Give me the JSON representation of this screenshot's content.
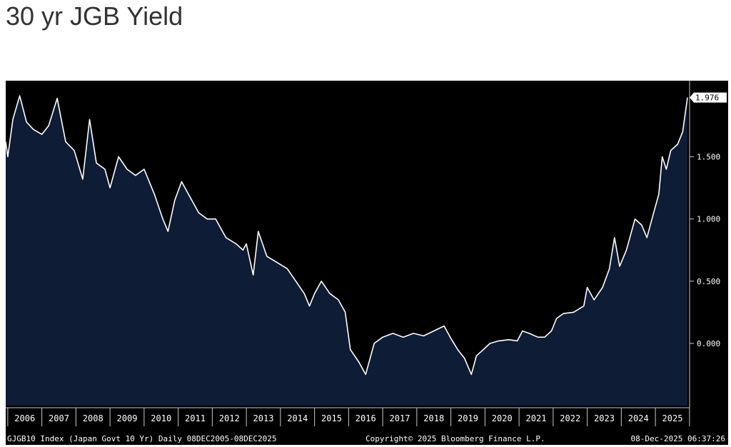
{
  "title": "30 yr JGB Yield",
  "chart_data": {
    "type": "area",
    "series_color": "#ffffff",
    "area_color": "#0f1c36",
    "background": "#000000",
    "ylim": [
      -0.5,
      2.1
    ],
    "xlim": [
      2005.94,
      2025.94
    ],
    "y_ticks": [
      0,
      0.5,
      1.0,
      1.5
    ],
    "y_tick_labels": [
      "0.000",
      "0.500",
      "1.000",
      "1.500"
    ],
    "y_axis_side": "right",
    "last_value": 1.976,
    "last_value_label": "1.976",
    "x_tick_labels": [
      "2006",
      "2007",
      "2008",
      "2009",
      "2010",
      "2011",
      "2012",
      "2013",
      "2014",
      "2015",
      "2016",
      "2017",
      "2018",
      "2019",
      "2020",
      "2021",
      "2022",
      "2023",
      "2024",
      "2025"
    ],
    "points": [
      [
        2005.94,
        1.62
      ],
      [
        2006.0,
        1.5
      ],
      [
        2006.15,
        1.8
      ],
      [
        2006.35,
        1.99
      ],
      [
        2006.55,
        1.78
      ],
      [
        2006.75,
        1.72
      ],
      [
        2007.0,
        1.68
      ],
      [
        2007.2,
        1.75
      ],
      [
        2007.45,
        1.97
      ],
      [
        2007.7,
        1.62
      ],
      [
        2007.95,
        1.55
      ],
      [
        2008.2,
        1.32
      ],
      [
        2008.4,
        1.8
      ],
      [
        2008.6,
        1.45
      ],
      [
        2008.85,
        1.4
      ],
      [
        2009.0,
        1.25
      ],
      [
        2009.25,
        1.5
      ],
      [
        2009.5,
        1.4
      ],
      [
        2009.75,
        1.35
      ],
      [
        2010.0,
        1.4
      ],
      [
        2010.3,
        1.2
      ],
      [
        2010.55,
        1.0
      ],
      [
        2010.7,
        0.9
      ],
      [
        2010.9,
        1.15
      ],
      [
        2011.1,
        1.3
      ],
      [
        2011.3,
        1.2
      ],
      [
        2011.6,
        1.05
      ],
      [
        2011.85,
        1.0
      ],
      [
        2012.1,
        1.0
      ],
      [
        2012.4,
        0.85
      ],
      [
        2012.7,
        0.8
      ],
      [
        2012.9,
        0.75
      ],
      [
        2013.0,
        0.8
      ],
      [
        2013.2,
        0.55
      ],
      [
        2013.35,
        0.9
      ],
      [
        2013.6,
        0.7
      ],
      [
        2013.9,
        0.65
      ],
      [
        2014.2,
        0.6
      ],
      [
        2014.45,
        0.5
      ],
      [
        2014.7,
        0.4
      ],
      [
        2014.85,
        0.3
      ],
      [
        2015.0,
        0.4
      ],
      [
        2015.2,
        0.5
      ],
      [
        2015.45,
        0.4
      ],
      [
        2015.7,
        0.35
      ],
      [
        2015.9,
        0.25
      ],
      [
        2016.05,
        -0.05
      ],
      [
        2016.3,
        -0.15
      ],
      [
        2016.5,
        -0.25
      ],
      [
        2016.75,
        0.0
      ],
      [
        2017.0,
        0.05
      ],
      [
        2017.3,
        0.08
      ],
      [
        2017.6,
        0.05
      ],
      [
        2017.9,
        0.08
      ],
      [
        2018.2,
        0.06
      ],
      [
        2018.5,
        0.1
      ],
      [
        2018.8,
        0.14
      ],
      [
        2019.0,
        0.04
      ],
      [
        2019.2,
        -0.05
      ],
      [
        2019.4,
        -0.12
      ],
      [
        2019.6,
        -0.25
      ],
      [
        2019.75,
        -0.1
      ],
      [
        2019.95,
        -0.05
      ],
      [
        2020.15,
        0.0
      ],
      [
        2020.4,
        0.02
      ],
      [
        2020.7,
        0.03
      ],
      [
        2020.95,
        0.02
      ],
      [
        2021.1,
        0.1
      ],
      [
        2021.3,
        0.08
      ],
      [
        2021.55,
        0.05
      ],
      [
        2021.75,
        0.05
      ],
      [
        2021.95,
        0.1
      ],
      [
        2022.1,
        0.2
      ],
      [
        2022.3,
        0.24
      ],
      [
        2022.6,
        0.25
      ],
      [
        2022.9,
        0.3
      ],
      [
        2023.0,
        0.45
      ],
      [
        2023.2,
        0.35
      ],
      [
        2023.45,
        0.45
      ],
      [
        2023.65,
        0.6
      ],
      [
        2023.8,
        0.85
      ],
      [
        2023.95,
        0.62
      ],
      [
        2024.15,
        0.75
      ],
      [
        2024.4,
        1.0
      ],
      [
        2024.6,
        0.95
      ],
      [
        2024.75,
        0.85
      ],
      [
        2024.95,
        1.05
      ],
      [
        2025.1,
        1.2
      ],
      [
        2025.2,
        1.5
      ],
      [
        2025.32,
        1.4
      ],
      [
        2025.45,
        1.55
      ],
      [
        2025.65,
        1.6
      ],
      [
        2025.8,
        1.7
      ],
      [
        2025.94,
        1.976
      ]
    ]
  },
  "footer": {
    "left": "GJGB10 Index (Japan Govt 10 Yr) Daily 08DEC2005-08DEC2025",
    "center": "Copyright© 2025 Bloomberg Finance L.P.",
    "right": "08-Dec-2025 06:37:26"
  }
}
